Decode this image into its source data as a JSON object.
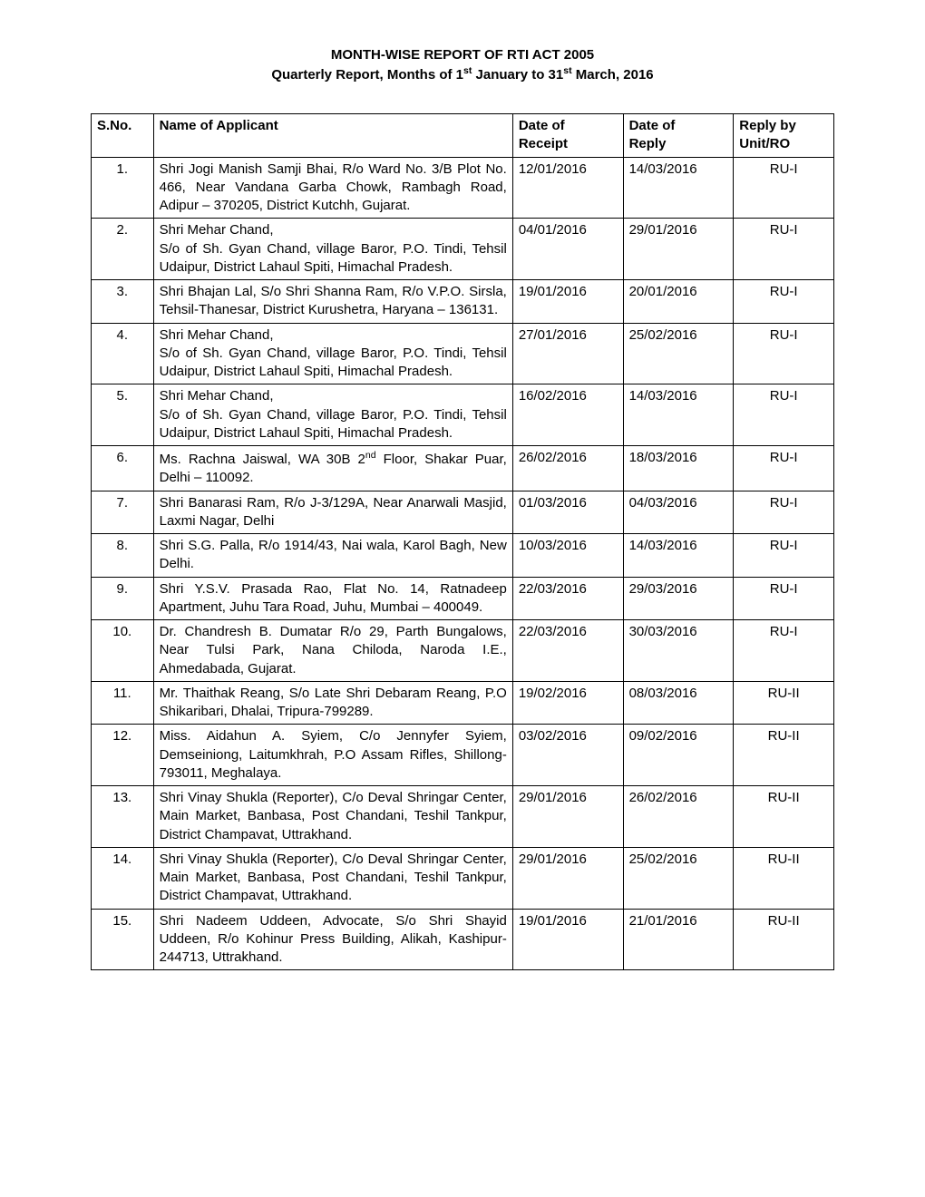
{
  "title": {
    "line1": "MONTH-WISE REPORT OF RTI ACT 2005",
    "line2_pre": "Quarterly Report, Months of 1",
    "line2_sup1": "st",
    "line2_mid": " January to 31",
    "line2_sup2": "st",
    "line2_post": " March, 2016"
  },
  "columns": {
    "sno": "S.No.",
    "name": "Name of Applicant",
    "receipt_l1": "Date of",
    "receipt_l2": "Receipt",
    "reply_l1": "Date of",
    "reply_l2": "Reply",
    "unit_l1": "Reply by",
    "unit_l2": "Unit/RO"
  },
  "rows": [
    {
      "sno": "1.",
      "name": "Shri Jogi Manish Samji Bhai, R/o Ward No. 3/B Plot No. 466, Near Vandana Garba Chowk, Rambagh Road, Adipur – 370205, District Kutchh, Gujarat.",
      "receipt": "12/01/2016",
      "reply": "14/03/2016",
      "unit": "RU-I"
    },
    {
      "sno": "2.",
      "name": "Shri Mehar Chand,\nS/o of Sh. Gyan Chand, village Baror, P.O. Tindi, Tehsil Udaipur, District Lahaul Spiti, Himachal Pradesh.",
      "receipt": "04/01/2016",
      "reply": "29/01/2016",
      "unit": "RU-I"
    },
    {
      "sno": "3.",
      "name": "Shri Bhajan Lal, S/o Shri Shanna Ram, R/o V.P.O. Sirsla, Tehsil-Thanesar, District Kurushetra, Haryana – 136131.",
      "receipt": "19/01/2016",
      "reply": "20/01/2016",
      "unit": "RU-I"
    },
    {
      "sno": "4.",
      "name": "Shri Mehar Chand,\nS/o of Sh. Gyan Chand, village Baror, P.O. Tindi, Tehsil Udaipur, District Lahaul Spiti, Himachal Pradesh.",
      "receipt": "27/01/2016",
      "reply": "25/02/2016",
      "unit": "RU-I"
    },
    {
      "sno": "5.",
      "name": "Shri Mehar Chand,\nS/o of Sh. Gyan Chand, village Baror, P.O. Tindi, Tehsil Udaipur, District Lahaul Spiti, Himachal Pradesh.",
      "receipt": "16/02/2016",
      "reply": "14/03/2016",
      "unit": "RU-I"
    },
    {
      "sno": "6.",
      "name_html": "Ms. Rachna Jaiswal, WA 30B 2<sup>nd</sup> Floor, Shakar Puar, Delhi – 110092.",
      "receipt": "26/02/2016",
      "reply": "18/03/2016",
      "unit": "RU-I"
    },
    {
      "sno": "7.",
      "name": "Shri Banarasi Ram, R/o J-3/129A, Near Anarwali Masjid, Laxmi Nagar, Delhi",
      "receipt": "01/03/2016",
      "reply": "04/03/2016",
      "unit": "RU-I"
    },
    {
      "sno": "8.",
      "name": "Shri S.G. Palla, R/o 1914/43, Nai wala, Karol Bagh, New Delhi.",
      "receipt": "10/03/2016",
      "reply": "14/03/2016",
      "unit": "RU-I"
    },
    {
      "sno": "9.",
      "name": "Shri Y.S.V. Prasada Rao, Flat No. 14, Ratnadeep Apartment, Juhu Tara Road, Juhu, Mumbai – 400049.",
      "receipt": "22/03/2016",
      "reply": "29/03/2016",
      "unit": "RU-I"
    },
    {
      "sno": "10.",
      "name": "Dr. Chandresh B. Dumatar R/o 29, Parth Bungalows, Near Tulsi Park, Nana Chiloda, Naroda I.E., Ahmedabada, Gujarat.",
      "receipt": "22/03/2016",
      "reply": "30/03/2016",
      "unit": "RU-I"
    },
    {
      "sno": "11.",
      "name": "Mr. Thaithak Reang, S/o Late Shri Debaram Reang, P.O Shikaribari, Dhalai, Tripura-799289.",
      "receipt": "19/02/2016",
      "reply": "08/03/2016",
      "unit": "RU-II"
    },
    {
      "sno": "12.",
      "name": "Miss. Aidahun A. Syiem, C/o Jennyfer Syiem, Demseiniong, Laitumkhrah, P.O Assam Rifles, Shillong-793011, Meghalaya.",
      "receipt": "03/02/2016",
      "reply": "09/02/2016",
      "unit": "RU-II"
    },
    {
      "sno": "13.",
      "name": "Shri Vinay Shukla (Reporter), C/o Deval Shringar Center, Main Market, Banbasa, Post Chandani, Teshil Tankpur, District Champavat, Uttrakhand.",
      "receipt": "29/01/2016",
      "reply": "26/02/2016",
      "unit": "RU-II"
    },
    {
      "sno": "14.",
      "name": "Shri Vinay Shukla (Reporter), C/o Deval Shringar Center, Main Market, Banbasa, Post Chandani, Teshil Tankpur, District Champavat, Uttrakhand.",
      "receipt": "29/01/2016",
      "reply": "25/02/2016",
      "unit": "RU-II"
    },
    {
      "sno": "15.",
      "name": "Shri Nadeem Uddeen, Advocate, S/o Shri Shayid Uddeen, R/o Kohinur Press Building, Alikah, Kashipur-244713, Uttrakhand.",
      "receipt": "19/01/2016",
      "reply": "21/01/2016",
      "unit": "RU-II"
    }
  ]
}
